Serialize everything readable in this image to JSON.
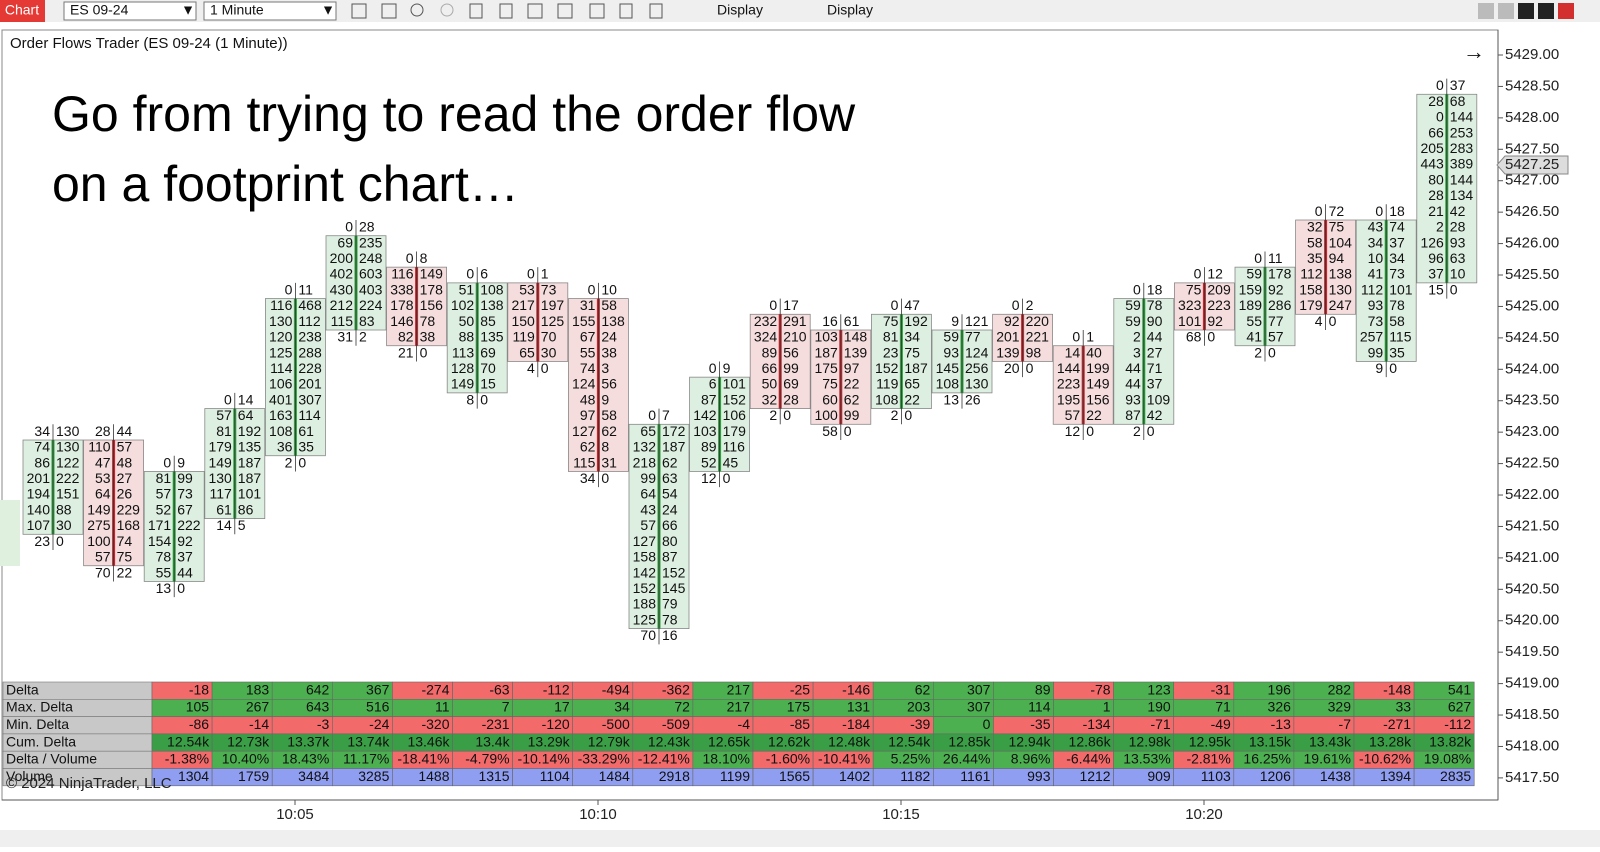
{
  "toolbar": {
    "chart_button": "Chart",
    "instrument": "ES 09-24",
    "interval": "1 Minute",
    "menus": [
      "Display",
      "Display"
    ]
  },
  "chart": {
    "title": "Order Flows Trader (ES 09-24 (1 Minute))",
    "headline": [
      "Go from trying to read the order flow",
      "on a footprint chart…"
    ],
    "price_labels": [
      "5429.00",
      "5428.50",
      "5428.00",
      "5427.50",
      "5427.00",
      "5426.50",
      "5426.00",
      "5425.50",
      "5425.00",
      "5424.50",
      "5424.00",
      "5423.50",
      "5423.00",
      "5422.50",
      "5422.00",
      "5421.50",
      "5421.00",
      "5420.50",
      "5420.00",
      "5419.50",
      "5419.00",
      "5418.50",
      "5418.00",
      "5417.50"
    ],
    "current_price": "5427.25",
    "time_labels": [
      "10:05",
      "10:10",
      "10:15",
      "10:20"
    ],
    "copyright": "© 2024 NinjaTrader, LLC",
    "up_color": "#2e9e3e",
    "down_color": "#c0282d",
    "bars": [
      {
        "high": 5423.0,
        "direction": "up",
        "rows": [
          [
            34,
            130
          ],
          [
            74,
            130
          ],
          [
            86,
            122
          ],
          [
            201,
            222
          ],
          [
            194,
            151
          ],
          [
            140,
            88
          ],
          [
            107,
            30
          ],
          [
            23,
            0
          ]
        ]
      },
      {
        "high": 5423.0,
        "direction": "down",
        "rows": [
          [
            28,
            44
          ],
          [
            110,
            57
          ],
          [
            47,
            48
          ],
          [
            53,
            27
          ],
          [
            64,
            26
          ],
          [
            149,
            229
          ],
          [
            275,
            168
          ],
          [
            100,
            74
          ],
          [
            57,
            75
          ],
          [
            70,
            22
          ]
        ]
      },
      {
        "high": 5422.5,
        "direction": "up",
        "rows": [
          [
            0,
            9
          ],
          [
            81,
            99
          ],
          [
            57,
            73
          ],
          [
            52,
            67
          ],
          [
            171,
            222
          ],
          [
            154,
            92
          ],
          [
            78,
            37
          ],
          [
            55,
            44
          ],
          [
            13,
            0
          ]
        ]
      },
      {
        "high": 5423.5,
        "direction": "up",
        "rows": [
          [
            0,
            14
          ],
          [
            57,
            64
          ],
          [
            81,
            192
          ],
          [
            179,
            135
          ],
          [
            149,
            187
          ],
          [
            130,
            187
          ],
          [
            117,
            101
          ],
          [
            61,
            86
          ],
          [
            14,
            5
          ]
        ]
      },
      {
        "high": 5425.25,
        "direction": "up",
        "rows": [
          [
            0,
            11
          ],
          [
            116,
            468
          ],
          [
            130,
            112
          ],
          [
            120,
            238
          ],
          [
            125,
            288
          ],
          [
            114,
            228
          ],
          [
            106,
            201
          ],
          [
            401,
            307
          ],
          [
            163,
            114
          ],
          [
            108,
            61
          ],
          [
            36,
            35
          ],
          [
            2,
            0
          ]
        ]
      },
      {
        "high": 5426.25,
        "direction": "up",
        "rows": [
          [
            0,
            28
          ],
          [
            69,
            235
          ],
          [
            200,
            248
          ],
          [
            402,
            603
          ],
          [
            430,
            403
          ],
          [
            212,
            224
          ],
          [
            115,
            83
          ],
          [
            31,
            2
          ]
        ]
      },
      {
        "high": 5425.75,
        "direction": "down",
        "rows": [
          [
            0,
            8
          ],
          [
            116,
            149
          ],
          [
            338,
            178
          ],
          [
            178,
            156
          ],
          [
            146,
            78
          ],
          [
            82,
            38
          ],
          [
            21,
            0
          ]
        ]
      },
      {
        "high": 5425.5,
        "direction": "up",
        "rows": [
          [
            0,
            6
          ],
          [
            51,
            108
          ],
          [
            102,
            138
          ],
          [
            50,
            85
          ],
          [
            88,
            135
          ],
          [
            113,
            69
          ],
          [
            128,
            70
          ],
          [
            149,
            15
          ],
          [
            8,
            0
          ]
        ]
      },
      {
        "high": 5425.5,
        "direction": "down",
        "rows": [
          [
            0,
            1
          ],
          [
            53,
            73
          ],
          [
            217,
            197
          ],
          [
            150,
            125
          ],
          [
            119,
            70
          ],
          [
            65,
            30
          ],
          [
            4,
            0
          ]
        ]
      },
      {
        "high": 5425.25,
        "direction": "down",
        "rows": [
          [
            0,
            10
          ],
          [
            31,
            58
          ],
          [
            155,
            138
          ],
          [
            67,
            24
          ],
          [
            55,
            38
          ],
          [
            74,
            3
          ],
          [
            124,
            56
          ],
          [
            48,
            9
          ],
          [
            97,
            58
          ],
          [
            127,
            62
          ],
          [
            62,
            8
          ],
          [
            115,
            31
          ],
          [
            34,
            0
          ]
        ]
      },
      {
        "high": 5423.25,
        "direction": "up",
        "rows": [
          [
            0,
            7
          ],
          [
            65,
            172
          ],
          [
            132,
            187
          ],
          [
            218,
            62
          ],
          [
            99,
            63
          ],
          [
            64,
            54
          ],
          [
            43,
            24
          ],
          [
            57,
            66
          ],
          [
            127,
            80
          ],
          [
            158,
            87
          ],
          [
            142,
            152
          ],
          [
            152,
            145
          ],
          [
            188,
            79
          ],
          [
            125,
            78
          ],
          [
            70,
            16
          ]
        ]
      },
      {
        "high": 5424.0,
        "direction": "up",
        "rows": [
          [
            0,
            9
          ],
          [
            6,
            101
          ],
          [
            87,
            152
          ],
          [
            142,
            106
          ],
          [
            103,
            179
          ],
          [
            89,
            116
          ],
          [
            52,
            45
          ],
          [
            12,
            0
          ]
        ]
      },
      {
        "high": 5425.0,
        "direction": "down",
        "rows": [
          [
            0,
            17
          ],
          [
            232,
            291
          ],
          [
            324,
            210
          ],
          [
            89,
            56
          ],
          [
            66,
            99
          ],
          [
            50,
            69
          ],
          [
            32,
            28
          ],
          [
            2,
            0
          ]
        ]
      },
      {
        "high": 5424.75,
        "direction": "down",
        "rows": [
          [
            16,
            61
          ],
          [
            103,
            148
          ],
          [
            187,
            139
          ],
          [
            175,
            97
          ],
          [
            75,
            22
          ],
          [
            60,
            62
          ],
          [
            100,
            99
          ],
          [
            58,
            0
          ]
        ]
      },
      {
        "high": 5425.0,
        "direction": "up",
        "rows": [
          [
            0,
            47
          ],
          [
            75,
            192
          ],
          [
            81,
            34
          ],
          [
            23,
            75
          ],
          [
            152,
            187
          ],
          [
            119,
            65
          ],
          [
            108,
            22
          ],
          [
            2,
            0
          ]
        ]
      },
      {
        "high": 5424.75,
        "direction": "up",
        "rows": [
          [
            9,
            121
          ],
          [
            59,
            77
          ],
          [
            93,
            124
          ],
          [
            145,
            256
          ],
          [
            108,
            130
          ],
          [
            13,
            26
          ]
        ]
      },
      {
        "high": 5425.0,
        "direction": "down",
        "rows": [
          [
            0,
            2
          ],
          [
            92,
            220
          ],
          [
            201,
            221
          ],
          [
            139,
            98
          ],
          [
            20,
            0
          ]
        ]
      },
      {
        "high": 5424.5,
        "direction": "down",
        "rows": [
          [
            0,
            1
          ],
          [
            14,
            40
          ],
          [
            144,
            199
          ],
          [
            223,
            149
          ],
          [
            195,
            156
          ],
          [
            57,
            22
          ],
          [
            12,
            0
          ]
        ]
      },
      {
        "high": 5425.25,
        "direction": "up",
        "rows": [
          [
            0,
            18
          ],
          [
            59,
            78
          ],
          [
            59,
            90
          ],
          [
            2,
            44
          ],
          [
            3,
            27
          ],
          [
            44,
            71
          ],
          [
            44,
            37
          ],
          [
            93,
            109
          ],
          [
            87,
            42
          ],
          [
            2,
            0
          ]
        ]
      },
      {
        "high": 5425.5,
        "direction": "down",
        "rows": [
          [
            0,
            12
          ],
          [
            75,
            209
          ],
          [
            323,
            223
          ],
          [
            101,
            92
          ],
          [
            68,
            0
          ]
        ]
      },
      {
        "high": 5425.75,
        "direction": "up",
        "rows": [
          [
            0,
            11
          ],
          [
            59,
            178
          ],
          [
            159,
            92
          ],
          [
            189,
            286
          ],
          [
            55,
            77
          ],
          [
            41,
            57
          ],
          [
            2,
            0
          ]
        ]
      },
      {
        "high": 5426.5,
        "direction": "down",
        "rows": [
          [
            0,
            72
          ],
          [
            32,
            75
          ],
          [
            58,
            104
          ],
          [
            35,
            94
          ],
          [
            112,
            138
          ],
          [
            158,
            130
          ],
          [
            179,
            247
          ],
          [
            4,
            0
          ]
        ]
      },
      {
        "high": 5426.5,
        "direction": "up",
        "rows": [
          [
            0,
            18
          ],
          [
            43,
            74
          ],
          [
            34,
            37
          ],
          [
            10,
            34
          ],
          [
            41,
            73
          ],
          [
            112,
            101
          ],
          [
            93,
            78
          ],
          [
            73,
            58
          ],
          [
            257,
            115
          ],
          [
            99,
            35
          ],
          [
            9,
            0
          ]
        ]
      },
      {
        "high": 5428.5,
        "direction": "up",
        "rows": [
          [
            0,
            37
          ],
          [
            28,
            68
          ],
          [
            0,
            144
          ],
          [
            66,
            253
          ],
          [
            205,
            283
          ],
          [
            443,
            389
          ],
          [
            80,
            144
          ],
          [
            28,
            134
          ],
          [
            21,
            42
          ],
          [
            2,
            28
          ],
          [
            126,
            93
          ],
          [
            96,
            63
          ],
          [
            37,
            10
          ],
          [
            15,
            0
          ]
        ]
      }
    ]
  },
  "stats": {
    "negative_color": "#f36a6a",
    "positive_color": "#4cb050",
    "rows": [
      {
        "label": "Delta",
        "values": [
          "-18",
          "183",
          "642",
          "367",
          "-274",
          "-63",
          "-112",
          "-494",
          "-362",
          "217",
          "-25",
          "-146",
          "62",
          "307",
          "89",
          "-78",
          "123",
          "-31",
          "196",
          "282",
          "-148",
          "541"
        ]
      },
      {
        "label": "Max. Delta",
        "values": [
          "105",
          "267",
          "643",
          "516",
          "11",
          "7",
          "17",
          "34",
          "72",
          "217",
          "175",
          "131",
          "203",
          "307",
          "114",
          "1",
          "190",
          "71",
          "326",
          "329",
          "33",
          "627"
        ]
      },
      {
        "label": "Min. Delta",
        "values": [
          "-86",
          "-14",
          "-3",
          "-24",
          "-320",
          "-231",
          "-120",
          "-500",
          "-509",
          "-4",
          "-85",
          "-184",
          "-39",
          "0",
          "-35",
          "-134",
          "-71",
          "-49",
          "-13",
          "-7",
          "-271",
          "-112"
        ]
      },
      {
        "label": "Cum. Delta",
        "color": "#3a9e46",
        "values": [
          "12.54k",
          "12.73k",
          "13.37k",
          "13.74k",
          "13.46k",
          "13.4k",
          "13.29k",
          "12.79k",
          "12.43k",
          "12.65k",
          "12.62k",
          "12.48k",
          "12.54k",
          "12.85k",
          "12.94k",
          "12.86k",
          "12.98k",
          "12.95k",
          "13.15k",
          "13.43k",
          "13.28k",
          "13.82k"
        ]
      },
      {
        "label": "Delta / Volume",
        "values": [
          "-1.38%",
          "10.40%",
          "18.43%",
          "11.17%",
          "-18.41%",
          "-4.79%",
          "-10.14%",
          "-33.29%",
          "-12.41%",
          "18.10%",
          "-1.60%",
          "-10.41%",
          "5.25%",
          "26.44%",
          "8.96%",
          "-6.44%",
          "13.53%",
          "-2.81%",
          "16.25%",
          "19.61%",
          "-10.62%",
          "19.08%"
        ]
      },
      {
        "label": "Volume",
        "color": "#8f9ef0",
        "values": [
          "1304",
          "1759",
          "3484",
          "3285",
          "1488",
          "1315",
          "1104",
          "1484",
          "2918",
          "1199",
          "1565",
          "1402",
          "1182",
          "1161",
          "993",
          "1212",
          "909",
          "1103",
          "1206",
          "1438",
          "1394",
          "2835"
        ]
      }
    ]
  }
}
